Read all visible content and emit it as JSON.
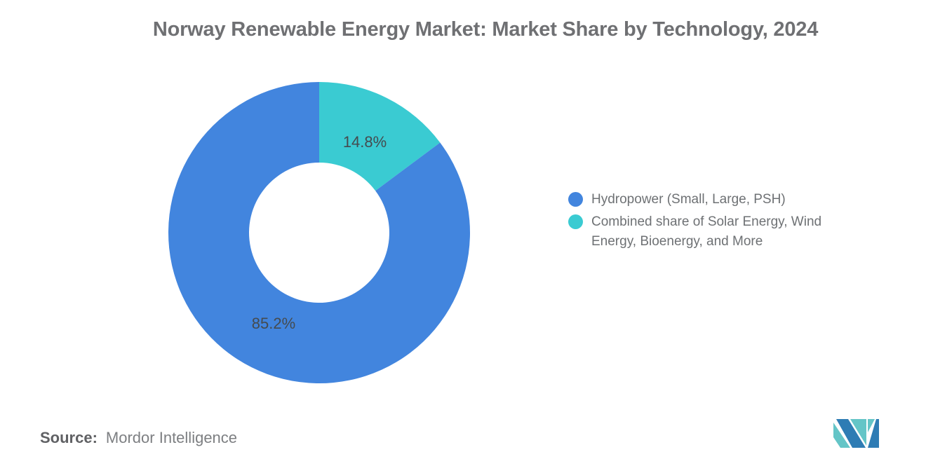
{
  "title": "Norway Renewable Energy Market: Market Share by Technology, 2024",
  "chart_data": {
    "type": "pie",
    "subtype": "donut",
    "title": "Norway Renewable Energy Market: Market Share by Technology, 2024",
    "categories": [
      "Hydropower (Small, Large, PSH)",
      "Combined share of Solar Energy, Wind Energy, Bioenergy, and More"
    ],
    "values": [
      85.2,
      14.8
    ],
    "unit": "%",
    "colors": [
      "#4285DE",
      "#3ACBD2"
    ],
    "legend_position": "right",
    "start_angle_deg": 0,
    "slices": [
      {
        "id": "combined-renewables",
        "label": "Combined share of Solar Energy, Wind Energy, Bioenergy, and More",
        "value": 14.8,
        "pct_label": "14.8%",
        "color": "#3ACBD2"
      },
      {
        "id": "hydropower",
        "label": "Hydropower (Small, Large, PSH)",
        "value": 85.2,
        "pct_label": "85.2%",
        "color": "#4285DE"
      }
    ]
  },
  "legend": {
    "items": [
      {
        "id": "hydropower",
        "label": "Hydropower (Small, Large, PSH)",
        "color": "#4285DE"
      },
      {
        "id": "combined-renewables",
        "label": "Combined share of Solar Energy, Wind Energy, Bioenergy, and More",
        "color": "#3ACBD2"
      }
    ]
  },
  "source": {
    "label": "Source:",
    "value": "Mordor Intelligence"
  },
  "logo": {
    "name": "mordor-intelligence-logo",
    "blue": "#2E7CB4",
    "teal": "#64C5C7"
  }
}
